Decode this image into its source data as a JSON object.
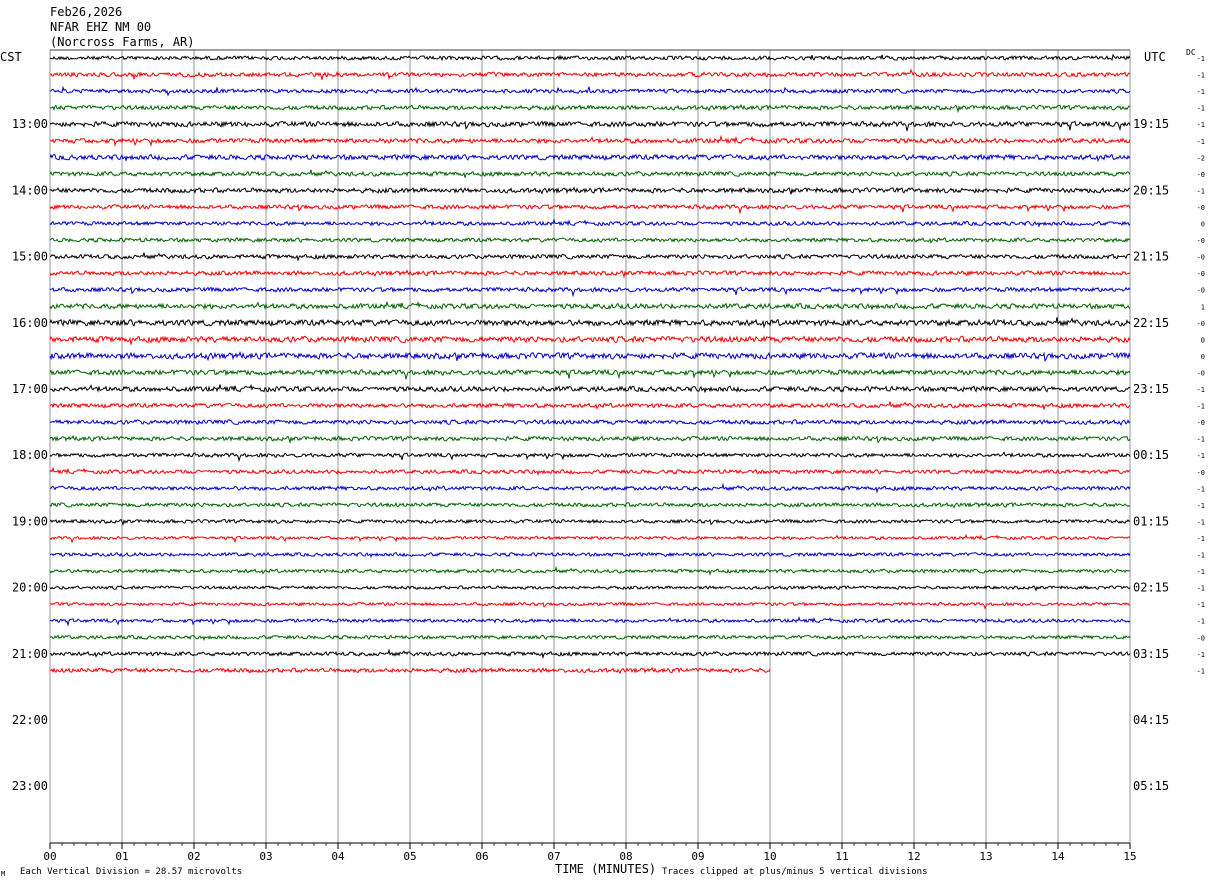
{
  "header": {
    "date": "Feb26,2026",
    "station": "NFAR EHZ NM 00",
    "location": "(Norcross Farms, AR)"
  },
  "left_timezone": "CST",
  "right_timezone": "UTC",
  "dc_label": "DC",
  "footer": {
    "scale_note": "Each Vertical Division =   28.57 microvolts",
    "clip_note": "Traces clipped at plus/minus 5 vertical divisions",
    "corner_mark": "M"
  },
  "colors": {
    "trace_cycle": [
      "#000000",
      "#ff0000",
      "#0000cc",
      "#006600"
    ],
    "grid": "#000000",
    "background": "#ffffff"
  },
  "chart_data": {
    "type": "line",
    "title": "NFAR EHZ NM 00",
    "xlabel": "TIME (MINUTES)",
    "ylabel": "",
    "x_range": [
      0,
      15
    ],
    "x_ticks": [
      "00",
      "01",
      "02",
      "03",
      "04",
      "05",
      "06",
      "07",
      "08",
      "09",
      "10",
      "11",
      "12",
      "13",
      "14",
      "15"
    ],
    "rows_total": 48,
    "rows_with_data": 38,
    "last_row_end_minute": 10,
    "local_hour_labels": [
      "13:00",
      "14:00",
      "15:00",
      "16:00",
      "17:00",
      "18:00",
      "19:00",
      "20:00",
      "21:00",
      "22:00",
      "23:00"
    ],
    "utc_hour_labels": [
      "19:15",
      "20:15",
      "21:15",
      "22:15",
      "23:15",
      "00:15",
      "01:15",
      "02:15",
      "03:15",
      "04:15",
      "05:15"
    ],
    "dc_offsets": [
      "-1",
      "-1",
      "-1",
      "-1",
      "-1",
      "-1",
      "-2",
      "-0",
      "-1",
      "-0",
      "0",
      "-0",
      "-0",
      "-0",
      "-0",
      "1",
      "-0",
      "0",
      "0",
      "-0",
      "-1",
      "-1",
      "-0",
      "-1",
      "-1",
      "-0",
      "-1",
      "-1",
      "-1",
      "-1",
      "-1",
      "-1",
      "-1",
      "-1",
      "-1",
      "-0",
      "-1",
      "-1"
    ],
    "activity": [
      1.0,
      1.1,
      1.0,
      1.1,
      1.3,
      1.2,
      1.3,
      1.1,
      1.2,
      1.1,
      1.0,
      1.0,
      1.1,
      1.1,
      1.1,
      1.3,
      1.5,
      1.5,
      1.5,
      1.3,
      1.3,
      1.1,
      1.1,
      1.1,
      1.0,
      1.0,
      1.0,
      1.0,
      0.9,
      0.8,
      0.9,
      0.9,
      0.8,
      0.8,
      0.9,
      0.9,
      1.0,
      1.1
    ],
    "grid": true,
    "legend": "none"
  }
}
